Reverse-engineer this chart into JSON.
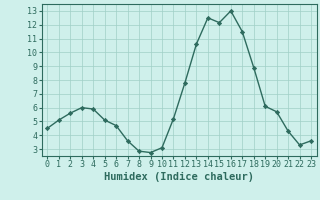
{
  "x": [
    0,
    1,
    2,
    3,
    4,
    5,
    6,
    7,
    8,
    9,
    10,
    11,
    12,
    13,
    14,
    15,
    16,
    17,
    18,
    19,
    20,
    21,
    22,
    23
  ],
  "y": [
    4.5,
    5.1,
    5.6,
    6.0,
    5.9,
    5.1,
    4.7,
    3.6,
    2.85,
    2.75,
    3.1,
    5.2,
    7.8,
    10.6,
    12.5,
    12.15,
    13.0,
    11.5,
    8.9,
    6.1,
    5.7,
    4.3,
    3.3,
    3.6
  ],
  "line_color": "#2e6b5e",
  "marker": "D",
  "marker_size": 2.2,
  "bg_color": "#cff0eb",
  "grid_color": "#a0cfc7",
  "xlabel": "Humidex (Indice chaleur)",
  "xlabel_fontsize": 7.5,
  "xlim": [
    -0.5,
    23.5
  ],
  "ylim": [
    2.5,
    13.5
  ],
  "yticks": [
    3,
    4,
    5,
    6,
    7,
    8,
    9,
    10,
    11,
    12,
    13
  ],
  "xticks": [
    0,
    1,
    2,
    3,
    4,
    5,
    6,
    7,
    8,
    9,
    10,
    11,
    12,
    13,
    14,
    15,
    16,
    17,
    18,
    19,
    20,
    21,
    22,
    23
  ],
  "tick_fontsize": 6.0,
  "line_width": 1.0
}
